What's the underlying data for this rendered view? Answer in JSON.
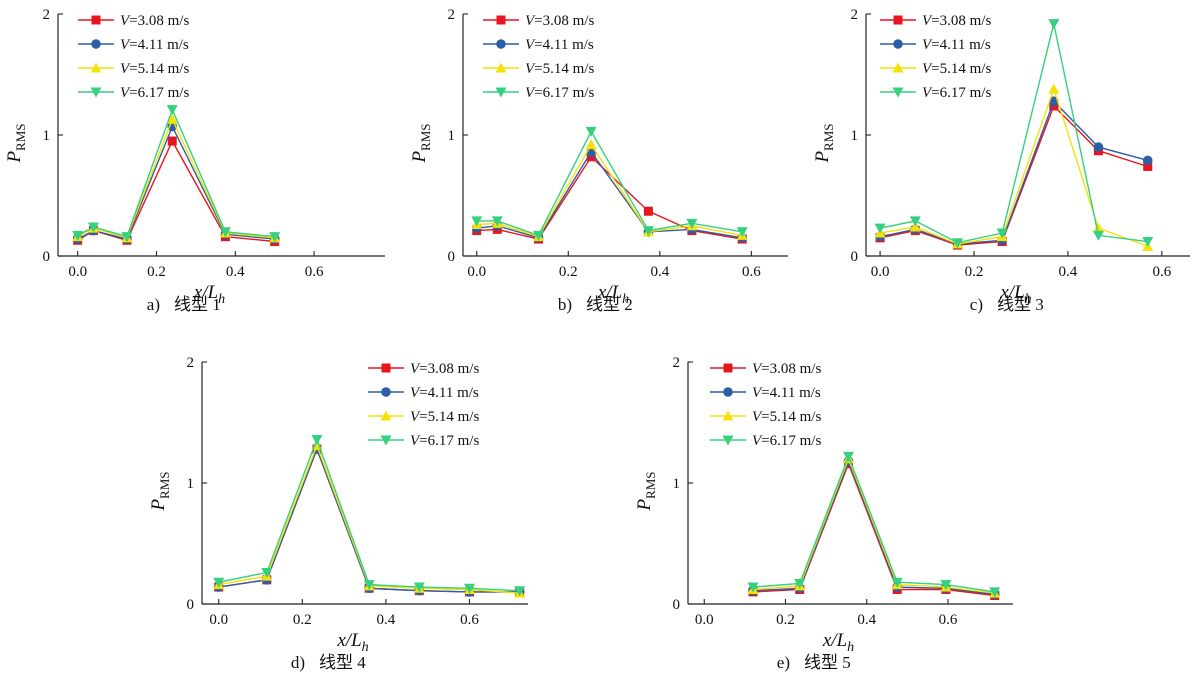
{
  "figure": {
    "panels": [
      {
        "caption_letter": "a)",
        "caption_text": "线型 1"
      },
      {
        "caption_letter": "b)",
        "caption_text": "线型 2"
      },
      {
        "caption_letter": "c)",
        "caption_text": "线型 3"
      },
      {
        "caption_letter": "d)",
        "caption_text": "线型 4"
      },
      {
        "caption_letter": "e)",
        "caption_text": "线型 5"
      }
    ]
  },
  "chart_data": [
    {
      "type": "line",
      "caption": "a) 线型 1",
      "xlabel": "x/Lh",
      "ylabel": "PRMS",
      "xlim": [
        -0.05,
        0.78
      ],
      "ylim": [
        0,
        2
      ],
      "xticks": [
        "0.0",
        "0.2",
        "0.4",
        "0.6"
      ],
      "yticks": [
        "0",
        "1",
        "2"
      ],
      "x": [
        0.0,
        0.04,
        0.125,
        0.24,
        0.375,
        0.5
      ],
      "series": [
        {
          "name": "V=3.08 m/s",
          "color": "#e8141e",
          "marker": "square",
          "values": [
            0.13,
            0.21,
            0.13,
            0.95,
            0.16,
            0.12
          ]
        },
        {
          "name": "V=4.11 m/s",
          "color": "#2d5ea8",
          "marker": "circle",
          "values": [
            0.14,
            0.21,
            0.14,
            1.07,
            0.18,
            0.14
          ]
        },
        {
          "name": "V=5.14 m/s",
          "color": "#f5e10a",
          "marker": "triangle-up",
          "values": [
            0.16,
            0.23,
            0.15,
            1.13,
            0.19,
            0.15
          ]
        },
        {
          "name": "V=6.17 m/s",
          "color": "#36d17e",
          "marker": "triangle-down",
          "values": [
            0.17,
            0.24,
            0.16,
            1.21,
            0.2,
            0.16
          ]
        }
      ]
    },
    {
      "type": "line",
      "caption": "b) 线型 2",
      "xlabel": "x/Lh",
      "ylabel": "PRMS",
      "xlim": [
        -0.03,
        0.68
      ],
      "ylim": [
        0,
        2
      ],
      "xticks": [
        "0.0",
        "0.2",
        "0.4",
        "0.6"
      ],
      "yticks": [
        "0",
        "1",
        "2"
      ],
      "x": [
        0.0,
        0.045,
        0.135,
        0.25,
        0.375,
        0.47,
        0.58
      ],
      "series": [
        {
          "name": "V=3.08 m/s",
          "color": "#e8141e",
          "marker": "square",
          "values": [
            0.21,
            0.22,
            0.14,
            0.82,
            0.37,
            0.21,
            0.14
          ]
        },
        {
          "name": "V=4.11 m/s",
          "color": "#2d5ea8",
          "marker": "circle",
          "values": [
            0.23,
            0.25,
            0.15,
            0.86,
            0.2,
            0.22,
            0.15
          ]
        },
        {
          "name": "V=5.14 m/s",
          "color": "#f5e10a",
          "marker": "triangle-up",
          "values": [
            0.26,
            0.27,
            0.16,
            0.92,
            0.2,
            0.25,
            0.17
          ]
        },
        {
          "name": "V=6.17 m/s",
          "color": "#36d17e",
          "marker": "triangle-down",
          "values": [
            0.29,
            0.29,
            0.17,
            1.03,
            0.21,
            0.27,
            0.2
          ]
        }
      ]
    },
    {
      "type": "line",
      "caption": "c) 线型 3",
      "xlabel": "x/Lh",
      "ylabel": "PRMS",
      "xlim": [
        -0.03,
        0.66
      ],
      "ylim": [
        0,
        2
      ],
      "xticks": [
        "0.0",
        "0.2",
        "0.4",
        "0.6"
      ],
      "yticks": [
        "0",
        "1",
        "2"
      ],
      "x": [
        0.0,
        0.075,
        0.165,
        0.26,
        0.37,
        0.465,
        0.57
      ],
      "series": [
        {
          "name": "V=3.08 m/s",
          "color": "#e8141e",
          "marker": "square",
          "values": [
            0.15,
            0.21,
            0.09,
            0.12,
            1.24,
            0.87,
            0.74
          ]
        },
        {
          "name": "V=4.11 m/s",
          "color": "#2d5ea8",
          "marker": "circle",
          "values": [
            0.16,
            0.22,
            0.1,
            0.13,
            1.28,
            0.9,
            0.79
          ]
        },
        {
          "name": "V=5.14 m/s",
          "color": "#f5e10a",
          "marker": "triangle-up",
          "values": [
            0.19,
            0.24,
            0.1,
            0.16,
            1.38,
            0.23,
            0.08
          ]
        },
        {
          "name": "V=6.17 m/s",
          "color": "#36d17e",
          "marker": "triangle-down",
          "values": [
            0.23,
            0.29,
            0.11,
            0.19,
            1.92,
            0.17,
            0.12
          ]
        }
      ]
    },
    {
      "type": "line",
      "caption": "d) 线型 4",
      "xlabel": "x/Lh",
      "ylabel": "PRMS",
      "xlim": [
        -0.04,
        0.74
      ],
      "ylim": [
        0,
        2
      ],
      "xticks": [
        "0.0",
        "0.2",
        "0.4",
        "0.6"
      ],
      "yticks": [
        "0",
        "1",
        "2"
      ],
      "x": [
        0.0,
        0.115,
        0.235,
        0.36,
        0.48,
        0.6,
        0.72
      ],
      "series": [
        {
          "name": "V=3.08 m/s",
          "color": "#e8141e",
          "marker": "square",
          "values": [
            0.14,
            0.2,
            1.28,
            0.13,
            0.11,
            0.1,
            0.1
          ]
        },
        {
          "name": "V=4.11 m/s",
          "color": "#2d5ea8",
          "marker": "circle",
          "values": [
            0.14,
            0.2,
            1.28,
            0.13,
            0.11,
            0.1,
            0.1
          ]
        },
        {
          "name": "V=5.14 m/s",
          "color": "#f5e10a",
          "marker": "triangle-up",
          "values": [
            0.16,
            0.23,
            1.31,
            0.15,
            0.13,
            0.12,
            0.09
          ]
        },
        {
          "name": "V=6.17 m/s",
          "color": "#36d17e",
          "marker": "triangle-down",
          "values": [
            0.18,
            0.26,
            1.36,
            0.16,
            0.14,
            0.13,
            0.11
          ]
        }
      ]
    },
    {
      "type": "line",
      "caption": "e) 线型 5",
      "xlabel": "x/Lh",
      "ylabel": "PRMS",
      "xlim": [
        -0.04,
        0.76
      ],
      "ylim": [
        0,
        2
      ],
      "xticks": [
        "0.0",
        "0.2",
        "0.4",
        "0.6"
      ],
      "yticks": [
        "0",
        "1",
        "2"
      ],
      "x": [
        0.12,
        0.235,
        0.355,
        0.475,
        0.595,
        0.715
      ],
      "series": [
        {
          "name": "V=3.08 m/s",
          "color": "#e8141e",
          "marker": "square",
          "values": [
            0.1,
            0.12,
            1.16,
            0.12,
            0.12,
            0.07
          ]
        },
        {
          "name": "V=4.11 m/s",
          "color": "#2d5ea8",
          "marker": "circle",
          "values": [
            0.11,
            0.13,
            1.18,
            0.14,
            0.13,
            0.08
          ]
        },
        {
          "name": "V=5.14 m/s",
          "color": "#f5e10a",
          "marker": "triangle-up",
          "values": [
            0.12,
            0.15,
            1.2,
            0.16,
            0.14,
            0.09
          ]
        },
        {
          "name": "V=6.17 m/s",
          "color": "#36d17e",
          "marker": "triangle-down",
          "values": [
            0.14,
            0.17,
            1.22,
            0.18,
            0.16,
            0.1
          ]
        }
      ]
    }
  ]
}
